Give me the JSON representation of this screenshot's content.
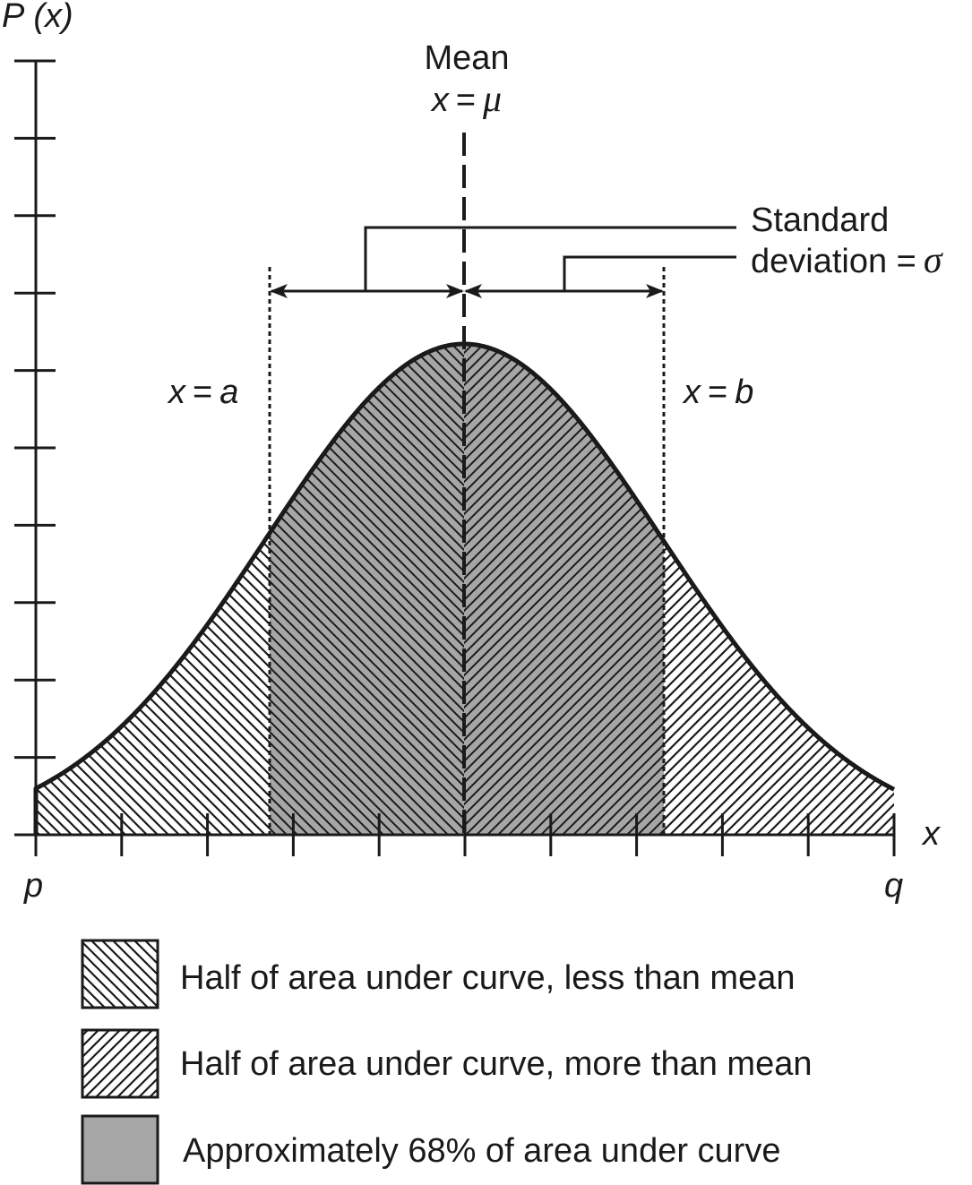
{
  "axes": {
    "y_label_p": "P",
    "y_label_x": "(x)",
    "x_label": "x",
    "x_start": "p",
    "x_end": "q"
  },
  "mean": {
    "title": "Mean",
    "eq_var": "x",
    "eq_sign": "=",
    "eq_sym": "μ"
  },
  "std_dev": {
    "line1": "Standard",
    "line2_text": "deviation =",
    "line2_sym": "σ"
  },
  "bounds": {
    "a_var": "x",
    "a_eq": "=",
    "a_val": "a",
    "b_var": "x",
    "b_eq": "=",
    "b_val": "b"
  },
  "legend": [
    {
      "pattern": "hatch-back",
      "label": "Half of area under curve, less than mean"
    },
    {
      "pattern": "hatch-fwd",
      "label": "Half of area under curve, more than mean"
    },
    {
      "pattern": "solid-gray",
      "label": "Approximately 68% of area under curve"
    }
  ],
  "colors": {
    "ink": "#1a1a1a",
    "shade": "#a6a6a6"
  },
  "icons": {
    "arrows": "double-headed-arrow"
  }
}
